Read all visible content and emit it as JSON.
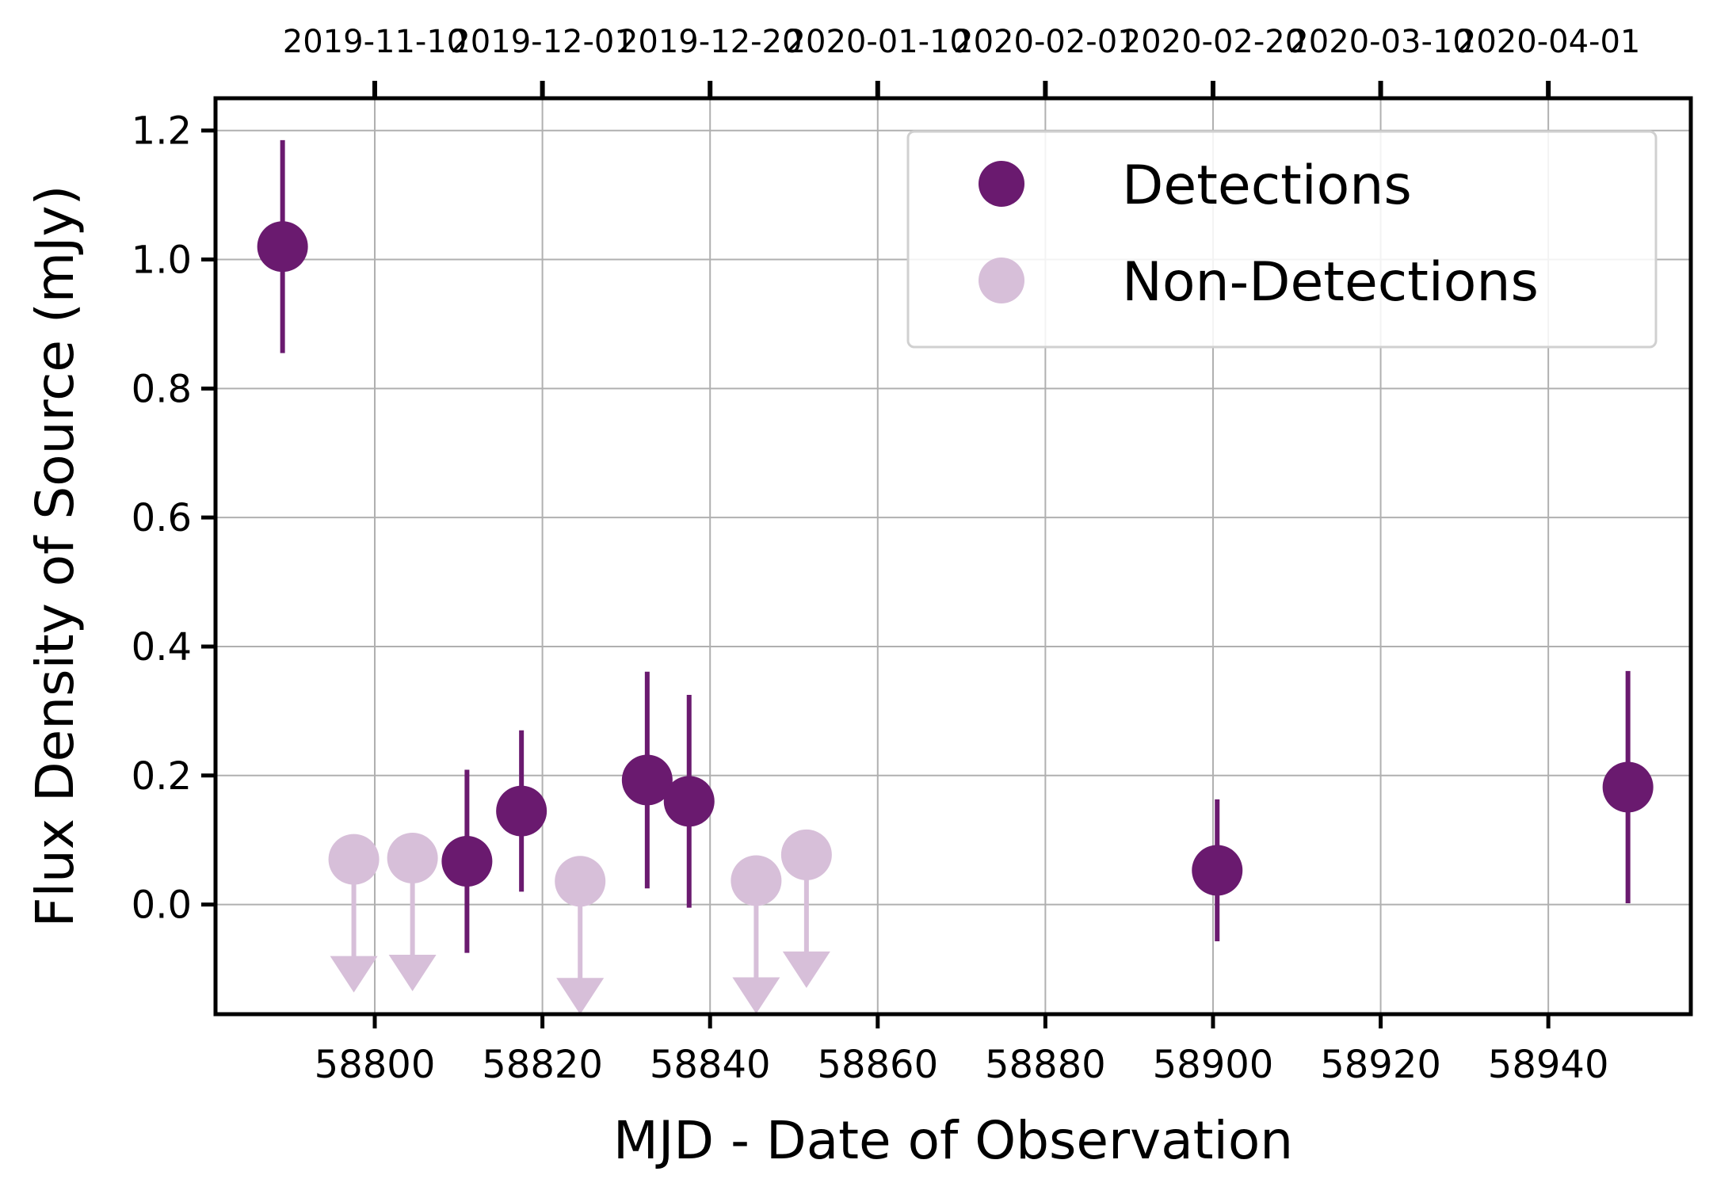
{
  "chart_data": {
    "type": "scatter",
    "title": "",
    "xlabel": "MJD - Date of Observation",
    "ylabel": "Flux Density of Source (mJy)",
    "xlim": [
      58781,
      58957
    ],
    "ylim": [
      -0.17,
      1.25
    ],
    "xticks": [
      58800,
      58820,
      58840,
      58860,
      58880,
      58900,
      58920,
      58940
    ],
    "yticks": [
      0.0,
      0.2,
      0.4,
      0.6,
      0.8,
      1.0,
      1.2
    ],
    "ytick_labels": [
      "0.0",
      "0.2",
      "0.4",
      "0.6",
      "0.8",
      "1.0",
      "1.2"
    ],
    "top_axis": {
      "ticks": [
        58800,
        58820,
        58840,
        58860,
        58880,
        58900,
        58920,
        58940
      ],
      "labels": [
        "2019-11-10",
        "2019-12-01",
        "2019-12-20",
        "2020-01-10",
        "2020-02-01",
        "2020-02-20",
        "2020-03-10",
        "2020-04-01"
      ]
    },
    "grid": true,
    "legend": {
      "placement": "top-right",
      "entries": [
        {
          "label": "Detections",
          "color": "#6a1a6f"
        },
        {
          "label": "Non-Detections",
          "color": "#d7bfd9"
        }
      ]
    },
    "series": [
      {
        "name": "Detections",
        "color": "#6a1a6f",
        "points": [
          {
            "x": 58789,
            "y": 1.02,
            "yerr": 0.165
          },
          {
            "x": 58811,
            "y": 0.067,
            "yerr": 0.142
          },
          {
            "x": 58817.5,
            "y": 0.145,
            "yerr": 0.125
          },
          {
            "x": 58832.5,
            "y": 0.193,
            "yerr": 0.168
          },
          {
            "x": 58837.5,
            "y": 0.16,
            "yerr": 0.165
          },
          {
            "x": 58900.5,
            "y": 0.053,
            "yerr": 0.11
          },
          {
            "x": 58949.5,
            "y": 0.182,
            "yerr": 0.18
          }
        ]
      },
      {
        "name": "Non-Detections",
        "color": "#d7bfd9",
        "upper_limit": true,
        "points": [
          {
            "x": 58797.5,
            "y": 0.07
          },
          {
            "x": 58804.5,
            "y": 0.072
          },
          {
            "x": 58824.5,
            "y": 0.036
          },
          {
            "x": 58845.5,
            "y": 0.037
          },
          {
            "x": 58851.5,
            "y": 0.077
          }
        ]
      }
    ]
  }
}
